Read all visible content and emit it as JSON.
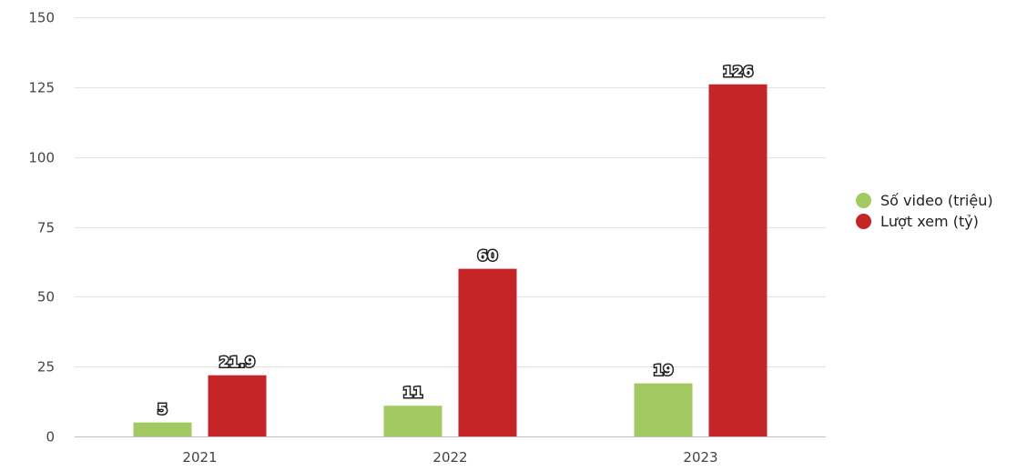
{
  "chart_data": {
    "type": "bar",
    "categories": [
      "2021",
      "2022",
      "2023"
    ],
    "series": [
      {
        "name": "Số video (triệu)",
        "values": [
          5,
          11,
          19
        ],
        "labels": [
          "5",
          "11",
          "19"
        ],
        "color": "#a3c962"
      },
      {
        "name": "Lượt xem (tỷ)",
        "values": [
          21.9,
          60,
          126
        ],
        "labels": [
          "21.9",
          "60",
          "126"
        ],
        "color": "#c62528"
      }
    ],
    "yticks": [
      "0",
      "25",
      "50",
      "75",
      "100",
      "125",
      "150"
    ],
    "ylim": [
      0,
      150
    ],
    "grid": true,
    "legend_position": "right"
  }
}
